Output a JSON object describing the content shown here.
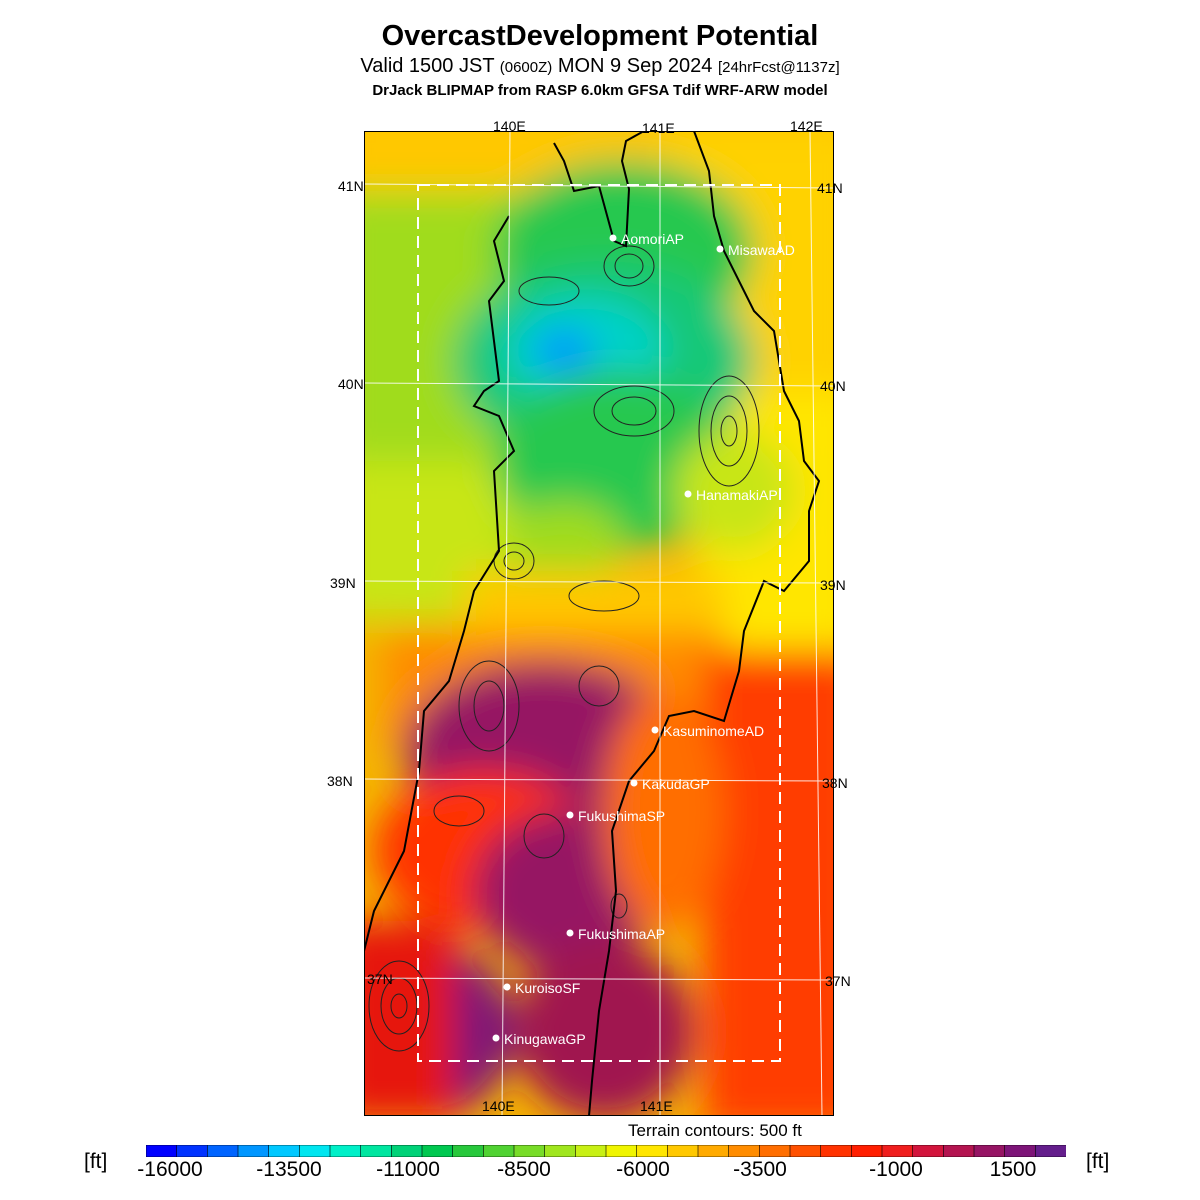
{
  "title": "OvercastDevelopment Potential",
  "subtitle": {
    "valid": "Valid 1500 JST",
    "utc": "(0600Z)",
    "date": "MON 9 Sep 2024",
    "forecast": "[24hrFcst@1137z]"
  },
  "model_line": "DrJack BLIPMAP from RASP 6.0km GFSA Tdif WRF-ARW model",
  "lon_labels": {
    "top": [
      "140E",
      "141E",
      "142E"
    ],
    "bottom": [
      "140E",
      "141E"
    ]
  },
  "lat_labels": {
    "left": [
      "41N",
      "40N",
      "39N",
      "38N",
      "37N"
    ],
    "right": [
      "41N",
      "40N",
      "39N",
      "38N",
      "37N"
    ]
  },
  "stations": [
    {
      "name": "AomoriAP"
    },
    {
      "name": "MisawaAD"
    },
    {
      "name": "HanamakiAP"
    },
    {
      "name": "KasuminomeAD"
    },
    {
      "name": "KakudaGP"
    },
    {
      "name": "FukushimaSP"
    },
    {
      "name": "FukushimaAP"
    },
    {
      "name": "KuroisoSF"
    },
    {
      "name": "KinugawaGP"
    }
  ],
  "terrain_note": "Terrain contours: 500 ft",
  "colorbar": {
    "unit": "[ft]",
    "tick_labels": [
      "-16000",
      "-13500",
      "-11000",
      "-8500",
      "-6000",
      "-3500",
      "-1000",
      "1500"
    ],
    "colors": [
      "#0000ff",
      "#0032ff",
      "#0064ff",
      "#0096ff",
      "#00c8ff",
      "#00e6f0",
      "#00f0c8",
      "#00e6a0",
      "#00d278",
      "#00c850",
      "#28c83c",
      "#50d232",
      "#78dc28",
      "#a0e61e",
      "#c8f014",
      "#f0f500",
      "#ffe600",
      "#ffc800",
      "#ffaa00",
      "#ff8c00",
      "#ff6e00",
      "#ff5000",
      "#ff3200",
      "#ff1e00",
      "#f01e1e",
      "#d2143c",
      "#b41450",
      "#961464",
      "#7d1478",
      "#641e8c"
    ]
  }
}
